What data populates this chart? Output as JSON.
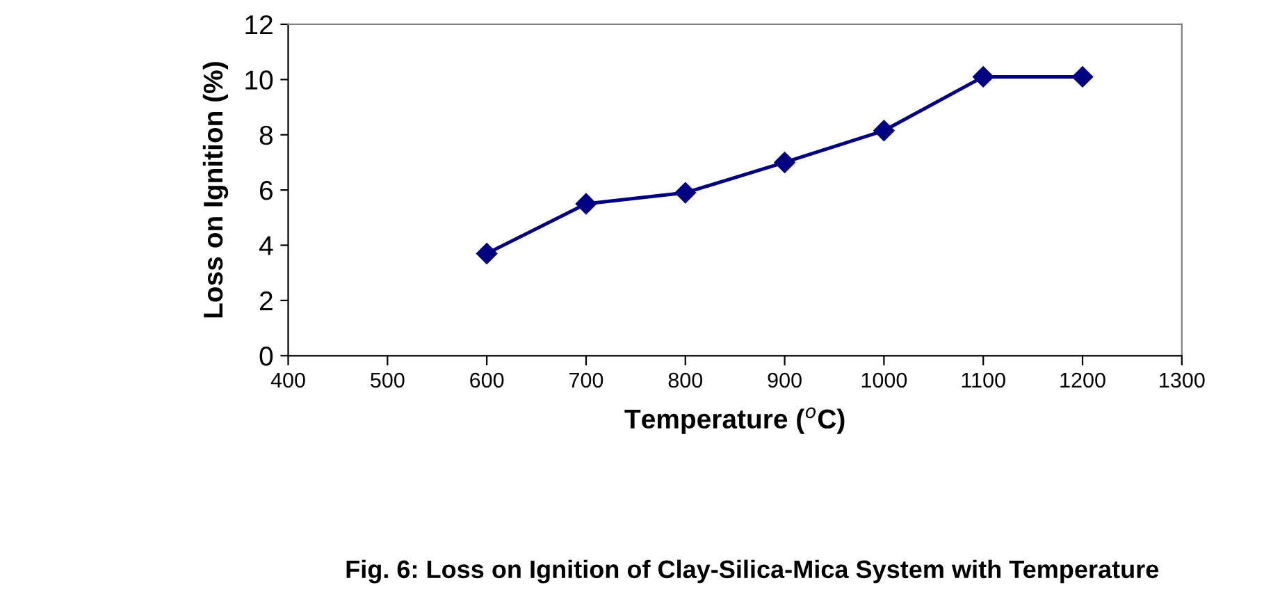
{
  "chart_data": {
    "type": "line",
    "title": "Fig. 6: Loss on Ignition of Clay-Silica-Mica System with Temperature",
    "xlabel": "Temperature ($^{o}$C)",
    "ylabel": "Loss on Ignition (%)",
    "x": [
      600,
      700,
      800,
      900,
      1000,
      1100,
      1200
    ],
    "series": [
      {
        "color": "#000080",
        "values": [
          3.7,
          5.5,
          5.9,
          7.0,
          8.15,
          10.1,
          10.1
        ]
      }
    ],
    "xlim": [
      400,
      1300
    ],
    "xticks": [
      400,
      500,
      600,
      700,
      800,
      900,
      1000,
      1100,
      1200,
      1300
    ],
    "ylim": [
      0,
      12
    ],
    "yticks": [
      0,
      2,
      4,
      6,
      8,
      10,
      12
    ],
    "marker": "diamond",
    "line_style": "solid",
    "grid": false,
    "legend": false
  }
}
